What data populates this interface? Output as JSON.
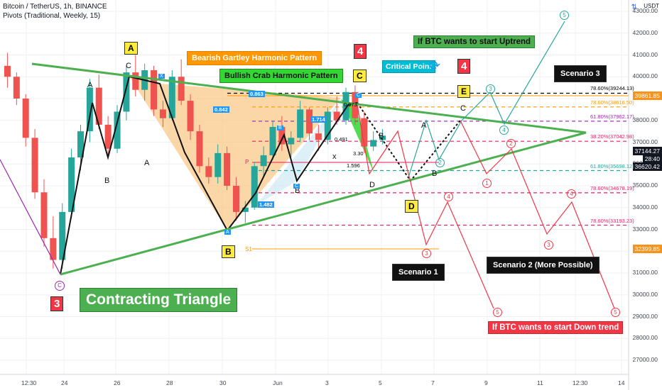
{
  "header": {
    "symbol_line": "Bitcoin / TetherUS, 1h, BINANCE",
    "pivots_line": "Pivots (Traditional, Weekly, 15)",
    "currency": "USDT"
  },
  "chart_data": {
    "type": "line",
    "title": "Bitcoin / TetherUS, 1h, BINANCE",
    "y_ticks": [
      "43000.00",
      "42000.00",
      "41000.00",
      "40000.00",
      "39000.00",
      "38000.00",
      "37000.00",
      "36000.00",
      "35000.00",
      "34000.00",
      "33000.00",
      "32000.00",
      "31000.00",
      "30000.00",
      "29000.00",
      "28000.00",
      "27000.00"
    ],
    "x_ticks": [
      "12:30",
      "24",
      "26",
      "28",
      "30",
      "Jun",
      "3",
      "5",
      "7",
      "9",
      "11",
      "12:30",
      "14"
    ],
    "ylim": [
      26600,
      43800
    ],
    "price_boxes": [
      {
        "label": "39861.85",
        "color": "#f7931a"
      },
      {
        "label": "37144.27",
        "color": "#131722"
      },
      {
        "label": "28:40",
        "color": "#131722"
      },
      {
        "label": "36620.42",
        "color": "#131722"
      },
      {
        "label": "32399.85",
        "color": "#f7931a"
      }
    ],
    "fib_levels": [
      {
        "label": "78.60%(39244.13)",
        "value": 39244.13,
        "color": "#000000"
      },
      {
        "label": "78.60%(38616.50)",
        "value": 38616.5,
        "color": "#ff9800"
      },
      {
        "label": "61.80%(37962.17)",
        "value": 37962.17,
        "color": "#9c27b0"
      },
      {
        "label": "38.20%(37042.98)",
        "value": 37042.98,
        "color": "#e91e63"
      },
      {
        "label": "61.80%(35698.12)",
        "value": 35698.12,
        "color": "#26a69a"
      },
      {
        "label": "78.60%(34678.19)",
        "value": 34678.19,
        "color": "#e91e63"
      },
      {
        "label": "78.60%(33193.23)",
        "value": 33193.23,
        "color": "#e91e63"
      }
    ],
    "pattern_labels": {
      "bearish_gartley": "Bearish Gartley Harmonic Pattern",
      "bullish_crab": "Bullish Crab Harmonic Pattern",
      "triangle": "Contracting Triangle",
      "uptrend": "If BTC wants to start Uptrend",
      "downtrend": "If BTC wants to start Down trend",
      "critical": "Critical Point",
      "scenario1": "Scenario 1",
      "scenario2": "Scenario 2 (More Possible)",
      "scenario3": "Scenario 3"
    },
    "ratios": [
      "0.863",
      "0.842",
      "1.714",
      "0.973",
      "0.491",
      "3.30",
      "1.596",
      "1.482"
    ],
    "wave_labels": {
      "A": "A",
      "B": "B",
      "C": "C",
      "D": "D",
      "E": "E",
      "X": "X",
      "P": "P",
      "S1": "S1",
      "x": "x",
      "n3": "3",
      "n4": "4",
      "n5": "5",
      "n1": "1",
      "n2": "2"
    },
    "candles": [
      [
        0,
        40500,
        41100,
        39500,
        40000
      ],
      [
        1,
        40000,
        40200,
        38700,
        39000
      ],
      [
        2,
        39000,
        39200,
        36800,
        37200
      ],
      [
        3,
        37200,
        37600,
        34400,
        34700
      ],
      [
        4,
        34700,
        35300,
        32200,
        32600
      ],
      [
        5,
        32600,
        33600,
        31200,
        31600
      ],
      [
        6,
        31600,
        34200,
        31200,
        33800
      ],
      [
        7,
        33800,
        36700,
        33500,
        36300
      ],
      [
        8,
        36300,
        37800,
        35700,
        37500
      ],
      [
        9,
        37500,
        39900,
        37000,
        39500
      ],
      [
        10,
        39500,
        40100,
        37600,
        37800
      ],
      [
        11,
        37800,
        38200,
        36400,
        36700
      ],
      [
        12,
        36700,
        38700,
        36500,
        38400
      ],
      [
        13,
        38400,
        40500,
        38000,
        40200
      ],
      [
        14,
        40200,
        41000,
        39100,
        39400
      ],
      [
        15,
        39400,
        40600,
        38900,
        40300
      ],
      [
        16,
        40300,
        40500,
        38200,
        38500
      ],
      [
        17,
        38500,
        38900,
        37700,
        38100
      ],
      [
        18,
        38100,
        40300,
        38000,
        40000
      ],
      [
        19,
        40000,
        40800,
        38700,
        38900
      ],
      [
        20,
        38900,
        39200,
        37100,
        37500
      ],
      [
        21,
        37500,
        37800,
        35600,
        35900
      ],
      [
        22,
        35900,
        36300,
        35100,
        35400
      ],
      [
        23,
        35400,
        36900,
        35100,
        36500
      ],
      [
        24,
        36500,
        36800,
        34800,
        35000
      ],
      [
        25,
        35000,
        35400,
        33400,
        33800
      ],
      [
        26,
        33800,
        34300,
        33300,
        34000
      ],
      [
        27,
        34000,
        36100,
        33900,
        35900
      ],
      [
        28,
        35900,
        36800,
        35400,
        36400
      ],
      [
        29,
        36400,
        38000,
        36200,
        37700
      ],
      [
        30,
        37700,
        38200,
        36600,
        36900
      ],
      [
        31,
        36900,
        37500,
        36300,
        37200
      ],
      [
        32,
        37200,
        38900,
        37000,
        38500
      ],
      [
        33,
        38500,
        38600,
        37100,
        37400
      ],
      [
        34,
        37400,
        37800,
        36600,
        37100
      ],
      [
        35,
        37100,
        38600,
        36900,
        38400
      ],
      [
        36,
        38400,
        39100,
        37800,
        38000
      ],
      [
        37,
        38000,
        39500,
        37800,
        39300
      ],
      [
        38,
        39300,
        39600,
        37800,
        38100
      ],
      [
        39,
        38100,
        38400,
        36500,
        36800
      ],
      [
        40,
        36800,
        37500,
        36600,
        37100
      ],
      [
        41,
        37100,
        37600,
        36900,
        37300
      ]
    ]
  }
}
